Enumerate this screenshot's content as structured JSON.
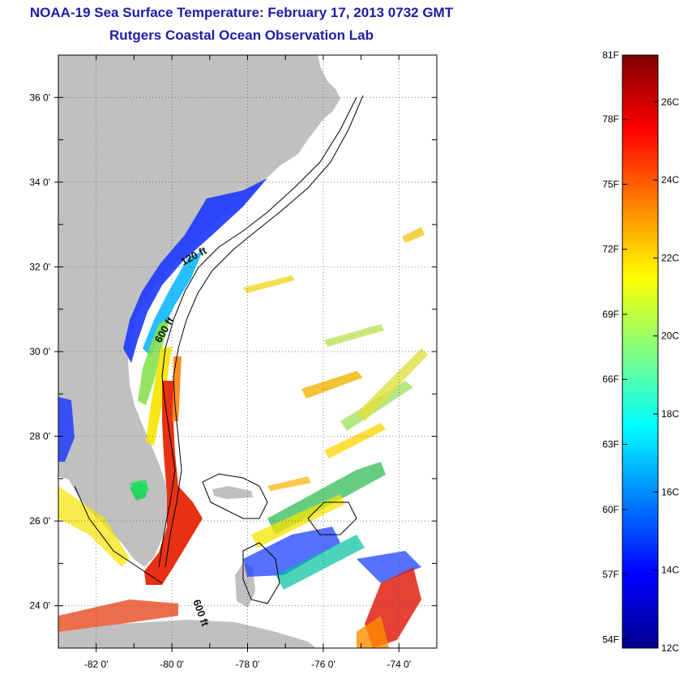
{
  "title": "NOAA-19 Sea Surface Temperature:  February 17, 2013 0732 GMT",
  "subtitle": "Rutgers Coastal Ocean Observation Lab",
  "map": {
    "lon_range": [
      -83,
      -73
    ],
    "lat_range": [
      23,
      37
    ],
    "lon_ticks": [
      {
        "value": -82,
        "label": "-82 0'"
      },
      {
        "value": -80,
        "label": "-80 0'"
      },
      {
        "value": -78,
        "label": "-78 0'"
      },
      {
        "value": -76,
        "label": "-76 0'"
      },
      {
        "value": -74,
        "label": "-74 0'"
      }
    ],
    "lat_ticks": [
      {
        "value": 36,
        "label": "36 0'"
      },
      {
        "value": 34,
        "label": "34 0'"
      },
      {
        "value": 32,
        "label": "32 0'"
      },
      {
        "value": 30,
        "label": "30 0'"
      },
      {
        "value": 28,
        "label": "28 0'"
      },
      {
        "value": 26,
        "label": "26 0'"
      },
      {
        "value": 24,
        "label": "24 0'"
      }
    ],
    "contour_labels": [
      "120 ft",
      "600 ft",
      "600 ft"
    ],
    "land_color": "#c0c0c0",
    "grid": true
  },
  "colorbar": {
    "fahrenheit_labels": [
      "81F",
      "78F",
      "75F",
      "72F",
      "69F",
      "66F",
      "63F",
      "60F",
      "57F",
      "54F"
    ],
    "celsius_labels": [
      "26C",
      "24C",
      "22C",
      "20C",
      "18C",
      "16C",
      "14C",
      "12C"
    ],
    "range_c": [
      12,
      27.2
    ],
    "colors": [
      "#00008f",
      "#0000ff",
      "#0080ff",
      "#00ffff",
      "#80ff80",
      "#ffff00",
      "#ff8000",
      "#ff0000",
      "#800000"
    ]
  }
}
